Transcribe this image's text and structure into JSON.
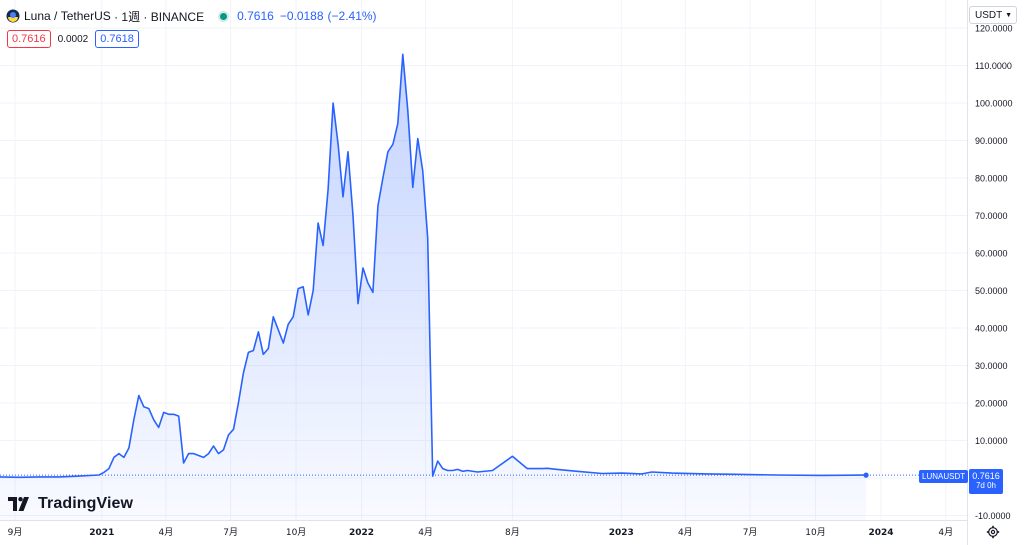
{
  "header": {
    "symbol": "Luna",
    "separator": " / ",
    "pair": "TetherUS",
    "interval_exchange": " · 1週 · BINANCE",
    "last_price": "0.7616",
    "change": "−0.0188",
    "change_pct": "(−2.41%)",
    "bid": "0.7616",
    "spread": "0.0002",
    "ask": "0.7618"
  },
  "axis_currency": "USDT",
  "last_price_badge": "LUNAUSDT",
  "price_tag": {
    "value": "0.7616",
    "countdown": "7d 0h"
  },
  "watermark": "TradingView",
  "colors": {
    "line": "#2962ff",
    "bid": "#f23645",
    "ask": "#2962ff",
    "status": "#089981"
  },
  "icons": [
    "luna-logo-icon",
    "chevron-down-icon",
    "tradingview-logo-icon",
    "gear-icon"
  ],
  "chart_data": {
    "type": "area",
    "ylim": [
      -10,
      120
    ],
    "y_ticks": [
      -10,
      0,
      10,
      20,
      30,
      40,
      50,
      60,
      70,
      80,
      90,
      100,
      110,
      120
    ],
    "y_tick_labels": [
      "-10.0000",
      "",
      "10.0000",
      "20.0000",
      "30.0000",
      "40.0000",
      "50.0000",
      "60.0000",
      "70.0000",
      "80.0000",
      "90.0000",
      "100.0000",
      "110.0000",
      "120.0000"
    ],
    "x_tick_labels": [
      "9月",
      "2021",
      "4月",
      "7月",
      "10月",
      "2022",
      "4月",
      "8月",
      "2023",
      "4月",
      "7月",
      "10月",
      "2024",
      "4月"
    ],
    "x_tick_dates": [
      "2020-09-01",
      "2021-01-01",
      "2021-04-01",
      "2021-07-01",
      "2021-10-01",
      "2022-01-01",
      "2022-04-01",
      "2022-08-01",
      "2023-01-01",
      "2023-04-01",
      "2023-07-01",
      "2023-10-01",
      "2024-01-01",
      "2024-04-01"
    ],
    "series": [
      {
        "x": [
          "2020-08-10",
          "2020-09-07",
          "2020-10-05",
          "2020-11-02",
          "2020-11-30",
          "2020-12-28",
          "2021-01-04",
          "2021-01-11",
          "2021-01-18",
          "2021-01-25",
          "2021-02-01",
          "2021-02-08",
          "2021-02-15",
          "2021-02-22",
          "2021-03-01",
          "2021-03-08",
          "2021-03-15",
          "2021-03-22",
          "2021-03-29",
          "2021-04-05",
          "2021-04-12",
          "2021-04-19",
          "2021-04-26",
          "2021-05-03",
          "2021-05-10",
          "2021-05-17",
          "2021-05-24",
          "2021-05-31",
          "2021-06-07",
          "2021-06-14",
          "2021-06-21",
          "2021-06-28",
          "2021-07-05",
          "2021-07-12",
          "2021-07-19",
          "2021-07-26",
          "2021-08-02",
          "2021-08-09",
          "2021-08-16",
          "2021-08-23",
          "2021-08-30",
          "2021-09-06",
          "2021-09-13",
          "2021-09-20",
          "2021-09-27",
          "2021-10-04",
          "2021-10-11",
          "2021-10-18",
          "2021-10-25",
          "2021-11-01",
          "2021-11-08",
          "2021-11-15",
          "2021-11-22",
          "2021-11-29",
          "2021-12-06",
          "2021-12-13",
          "2021-12-20",
          "2021-12-27",
          "2022-01-03",
          "2022-01-10",
          "2022-01-17",
          "2022-01-24",
          "2022-01-31",
          "2022-02-07",
          "2022-02-14",
          "2022-02-21",
          "2022-02-28",
          "2022-03-07",
          "2022-03-14",
          "2022-03-21",
          "2022-03-28",
          "2022-04-04",
          "2022-04-11",
          "2022-04-18",
          "2022-04-25",
          "2022-05-02",
          "2022-05-09",
          "2022-05-16",
          "2022-05-23",
          "2022-05-30",
          "2022-06-13",
          "2022-07-04",
          "2022-08-01",
          "2022-08-22",
          "2022-09-05",
          "2022-09-12",
          "2022-09-19",
          "2022-10-03",
          "2022-10-31",
          "2022-12-05",
          "2023-01-02",
          "2023-01-30",
          "2023-02-13",
          "2023-03-13",
          "2023-05-01",
          "2023-06-12",
          "2023-08-07",
          "2023-10-09",
          "2023-11-20",
          "2023-12-04",
          "2023-12-11"
        ],
        "y": [
          0.3,
          0.2,
          0.3,
          0.3,
          0.5,
          0.8,
          1.5,
          2.5,
          5.5,
          6.5,
          5.5,
          8,
          15.5,
          22,
          19,
          18.5,
          15.5,
          13.5,
          17.5,
          17,
          17,
          16.5,
          4,
          6.5,
          6.5,
          6,
          5.5,
          6.5,
          8.5,
          6.5,
          7.5,
          11.5,
          13,
          20,
          28,
          33.5,
          34,
          39,
          33,
          34.5,
          43,
          39.5,
          36,
          41,
          43,
          50.5,
          51,
          43.5,
          50,
          68,
          62,
          77,
          100,
          89,
          75,
          87,
          70,
          46.5,
          56,
          52,
          49.5,
          72.5,
          80,
          87,
          89,
          94.5,
          113,
          98,
          77.5,
          90.5,
          82,
          64,
          0.5,
          4.5,
          2.5,
          2,
          2,
          2.3,
          1.8,
          2,
          1.6,
          2,
          5.8,
          2.5,
          2.5,
          2.5,
          2.6,
          2.3,
          1.8,
          1.2,
          1.3,
          1.1,
          1.6,
          1.3,
          1.1,
          1.0,
          0.8,
          0.7,
          0.75,
          0.76,
          0.7616
        ]
      }
    ]
  }
}
